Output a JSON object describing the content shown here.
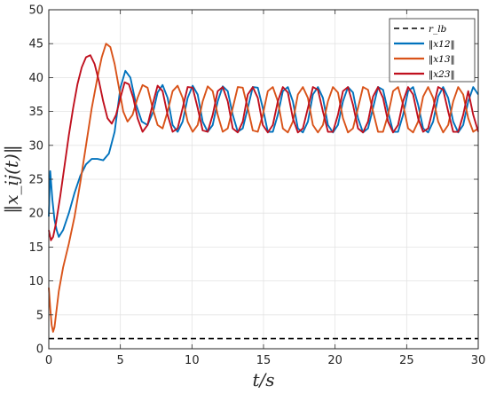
{
  "chart_data": {
    "type": "line",
    "title": "",
    "xlabel": "t/s",
    "ylabel": "‖x_ij(t)‖",
    "xlim": [
      0,
      30
    ],
    "ylim": [
      0,
      50
    ],
    "xticks": [
      0,
      5,
      10,
      15,
      20,
      25,
      30
    ],
    "yticks": [
      0,
      5,
      10,
      15,
      20,
      25,
      30,
      35,
      40,
      45,
      50
    ],
    "grid": true,
    "legend_position": "top-right",
    "series": [
      {
        "name": "r_lb",
        "style": "dashed",
        "color": "#000000",
        "x": [
          0,
          30
        ],
        "y": [
          1.5,
          1.5
        ]
      },
      {
        "name": "‖x12‖",
        "style": "solid",
        "color": "#0072BD",
        "x": [
          0,
          0.1,
          0.25,
          0.4,
          0.55,
          0.7,
          1.0,
          1.4,
          1.8,
          2.2,
          2.6,
          3.0,
          3.4,
          3.8,
          4.2,
          4.6,
          5.0,
          5.35,
          5.7,
          6.1,
          6.5,
          6.9,
          7.3,
          7.6,
          7.95,
          8.3,
          8.65,
          9.0,
          9.35,
          9.7,
          10.05,
          10.4,
          10.75,
          11.1,
          11.45,
          11.8,
          12.15,
          12.5,
          12.85,
          13.2,
          13.55,
          13.9,
          14.25,
          14.6,
          14.95,
          15.3,
          15.65,
          16.0,
          16.35,
          16.7,
          17.05,
          17.4,
          17.75,
          18.1,
          18.45,
          18.8,
          19.15,
          19.5,
          19.85,
          20.2,
          20.55,
          20.9,
          21.25,
          21.6,
          21.95,
          22.3,
          22.65,
          23.0,
          23.35,
          23.7,
          24.05,
          24.4,
          24.75,
          25.1,
          25.45,
          25.8,
          26.15,
          26.5,
          26.85,
          27.2,
          27.55,
          27.9,
          28.25,
          28.6,
          28.95,
          29.3,
          29.65,
          30.0
        ],
        "y": [
          19.5,
          26.2,
          22.0,
          19.0,
          17.5,
          16.5,
          17.5,
          20.0,
          23.0,
          25.5,
          27.2,
          28.0,
          28.0,
          27.8,
          28.8,
          32.0,
          38.5,
          41.0,
          40.0,
          36.0,
          33.5,
          33.0,
          35.0,
          37.8,
          38.9,
          37.0,
          33.0,
          32.0,
          33.5,
          37.0,
          38.8,
          37.5,
          33.5,
          32.0,
          33.0,
          36.5,
          38.7,
          38.0,
          34.5,
          32.0,
          32.5,
          35.5,
          38.6,
          38.5,
          35.5,
          32.0,
          32.0,
          34.5,
          38.0,
          38.6,
          36.5,
          32.5,
          31.9,
          33.5,
          37.5,
          38.6,
          37.0,
          33.0,
          31.9,
          33.0,
          36.5,
          38.6,
          37.8,
          34.0,
          31.9,
          32.5,
          35.5,
          38.6,
          38.2,
          35.0,
          32.0,
          32.0,
          34.5,
          38.0,
          38.6,
          36.0,
          32.5,
          31.9,
          33.5,
          37.2,
          38.6,
          37.0,
          33.5,
          31.9,
          33.0,
          36.5,
          38.6,
          37.5
        ]
      },
      {
        "name": "‖x13‖",
        "style": "solid",
        "color": "#D95319",
        "x": [
          0,
          0.1,
          0.2,
          0.3,
          0.4,
          0.5,
          0.7,
          1.0,
          1.4,
          1.8,
          2.2,
          2.6,
          3.0,
          3.4,
          3.7,
          4.0,
          4.3,
          4.6,
          4.9,
          5.2,
          5.5,
          5.85,
          6.2,
          6.55,
          6.9,
          7.25,
          7.6,
          7.95,
          8.3,
          8.65,
          9.0,
          9.35,
          9.7,
          10.05,
          10.4,
          10.75,
          11.1,
          11.45,
          11.8,
          12.15,
          12.5,
          12.85,
          13.2,
          13.55,
          13.9,
          14.25,
          14.6,
          14.95,
          15.3,
          15.65,
          16.0,
          16.35,
          16.7,
          17.05,
          17.4,
          17.75,
          18.1,
          18.45,
          18.8,
          19.15,
          19.5,
          19.85,
          20.2,
          20.55,
          20.9,
          21.25,
          21.6,
          21.95,
          22.3,
          22.65,
          23.0,
          23.35,
          23.7,
          24.05,
          24.4,
          24.75,
          25.1,
          25.45,
          25.8,
          26.15,
          26.5,
          26.85,
          27.2,
          27.55,
          27.9,
          28.25,
          28.6,
          28.95,
          29.3,
          29.65,
          30.0
        ],
        "y": [
          9.0,
          6.0,
          3.5,
          2.5,
          3.2,
          5.0,
          8.5,
          12.0,
          15.5,
          19.5,
          24.5,
          30.0,
          35.5,
          40.0,
          43.0,
          45.0,
          44.5,
          42.0,
          38.5,
          35.0,
          33.5,
          34.5,
          37.0,
          38.9,
          38.5,
          35.5,
          33.0,
          32.5,
          35.0,
          38.0,
          38.8,
          37.0,
          33.5,
          32.0,
          33.0,
          36.5,
          38.7,
          38.0,
          34.5,
          32.0,
          32.5,
          35.5,
          38.6,
          38.5,
          35.5,
          32.2,
          32.0,
          34.5,
          38.0,
          38.6,
          36.5,
          32.5,
          31.9,
          33.5,
          37.5,
          38.6,
          37.0,
          33.0,
          31.9,
          33.0,
          36.5,
          38.6,
          37.8,
          34.0,
          31.9,
          32.5,
          35.5,
          38.6,
          38.2,
          35.0,
          32.0,
          32.0,
          34.5,
          38.0,
          38.6,
          36.0,
          32.5,
          31.9,
          33.5,
          37.2,
          38.6,
          37.0,
          33.5,
          31.9,
          33.0,
          36.5,
          38.6,
          37.5,
          34.0,
          32.0,
          32.5
        ]
      },
      {
        "name": "‖x23‖",
        "style": "solid",
        "color": "#C0101E",
        "x": [
          0,
          0.15,
          0.3,
          0.5,
          0.8,
          1.1,
          1.4,
          1.7,
          2.0,
          2.3,
          2.6,
          2.9,
          3.2,
          3.5,
          3.8,
          4.1,
          4.4,
          4.7,
          5.0,
          5.3,
          5.6,
          5.9,
          6.2,
          6.55,
          6.9,
          7.25,
          7.6,
          7.95,
          8.3,
          8.65,
          9.0,
          9.35,
          9.7,
          10.05,
          10.4,
          10.75,
          11.1,
          11.45,
          11.8,
          12.15,
          12.5,
          12.85,
          13.2,
          13.55,
          13.9,
          14.25,
          14.6,
          14.95,
          15.3,
          15.65,
          16.0,
          16.35,
          16.7,
          17.05,
          17.4,
          17.75,
          18.1,
          18.45,
          18.8,
          19.15,
          19.5,
          19.85,
          20.2,
          20.55,
          20.9,
          21.25,
          21.6,
          21.95,
          22.3,
          22.65,
          23.0,
          23.35,
          23.7,
          24.05,
          24.4,
          24.75,
          25.1,
          25.45,
          25.8,
          26.15,
          26.5,
          26.85,
          27.2,
          27.55,
          27.9,
          28.25,
          28.6,
          28.95,
          29.3,
          29.65,
          30.0
        ],
        "y": [
          17.5,
          16.0,
          16.5,
          18.5,
          22.5,
          27.0,
          31.5,
          35.5,
          39.0,
          41.5,
          43.0,
          43.3,
          42.0,
          39.5,
          36.5,
          34.0,
          33.2,
          34.5,
          37.0,
          39.3,
          39.0,
          37.0,
          34.0,
          32.0,
          33.0,
          36.0,
          38.8,
          38.0,
          34.5,
          32.0,
          32.5,
          35.5,
          38.6,
          38.5,
          35.5,
          32.2,
          32.0,
          34.5,
          38.0,
          38.6,
          36.5,
          32.5,
          31.9,
          33.5,
          37.5,
          38.6,
          37.0,
          33.0,
          31.9,
          33.0,
          36.5,
          38.6,
          37.8,
          34.0,
          31.9,
          32.5,
          35.5,
          38.6,
          38.2,
          35.0,
          32.0,
          32.0,
          34.5,
          38.0,
          38.6,
          36.0,
          32.5,
          31.9,
          33.5,
          37.2,
          38.6,
          37.0,
          33.5,
          31.9,
          33.0,
          36.5,
          38.6,
          37.5,
          34.0,
          32.0,
          32.5,
          35.5,
          38.6,
          38.2,
          35.0,
          32.0,
          32.0,
          34.5,
          38.0,
          34.5,
          32.0
        ]
      }
    ]
  }
}
